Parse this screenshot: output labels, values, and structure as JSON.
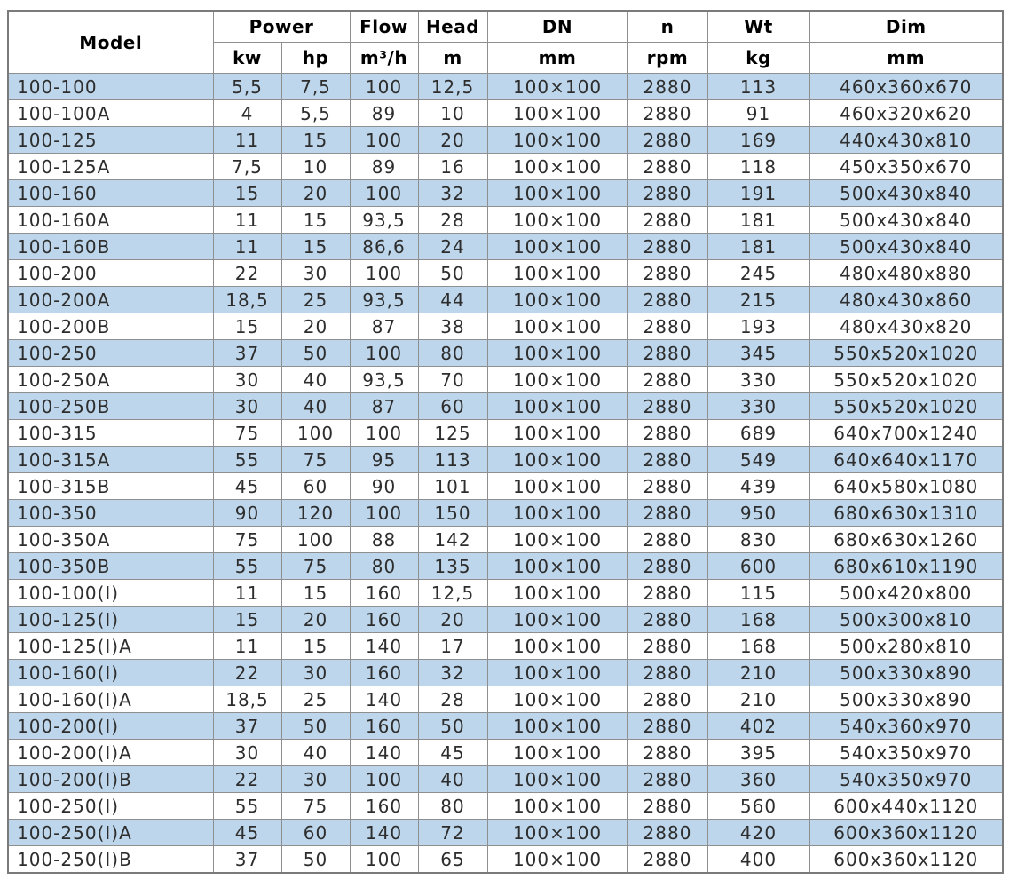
{
  "colors": {
    "stripe_blue": "#bdd6eb",
    "row_white": "#ffffff",
    "grid_border": "#8f8f8f",
    "outer_border": "#7b7b7b",
    "header_text": "#000000",
    "body_text": "#2d2d2d"
  },
  "chart_data": {
    "type": "table",
    "layout": {
      "striped": true,
      "first_row_color": "blue",
      "numeric_alignment": "center",
      "model_alignment": "left"
    },
    "header": {
      "groups": [
        {
          "label": "Model"
        },
        {
          "label": "Power"
        },
        {
          "label": "Flow"
        },
        {
          "label": "Head"
        },
        {
          "label": "DN"
        },
        {
          "label": "n"
        },
        {
          "label": "Wt"
        },
        {
          "label": "Dim"
        }
      ],
      "units": [
        "kw",
        "hp",
        "m³/h",
        "m",
        "mm",
        "rpm",
        "kg",
        "mm"
      ]
    },
    "rows": [
      [
        "100-100",
        "5,5",
        "7,5",
        "100",
        "12,5",
        "100×100",
        "2880",
        "113",
        "460x360x670"
      ],
      [
        "100-100A",
        "4",
        "5,5",
        "89",
        "10",
        "100×100",
        "2880",
        "91",
        "460x320x620"
      ],
      [
        "100-125",
        "11",
        "15",
        "100",
        "20",
        "100×100",
        "2880",
        "169",
        "440x430x810"
      ],
      [
        "100-125A",
        "7,5",
        "10",
        "89",
        "16",
        "100×100",
        "2880",
        "118",
        "450x350x670"
      ],
      [
        "100-160",
        "15",
        "20",
        "100",
        "32",
        "100×100",
        "2880",
        "191",
        "500x430x840"
      ],
      [
        "100-160A",
        "11",
        "15",
        "93,5",
        "28",
        "100×100",
        "2880",
        "181",
        "500x430x840"
      ],
      [
        "100-160B",
        "11",
        "15",
        "86,6",
        "24",
        "100×100",
        "2880",
        "181",
        "500x430x840"
      ],
      [
        "100-200",
        "22",
        "30",
        "100",
        "50",
        "100×100",
        "2880",
        "245",
        "480x480x880"
      ],
      [
        "100-200A",
        "18,5",
        "25",
        "93,5",
        "44",
        "100×100",
        "2880",
        "215",
        "480x430x860"
      ],
      [
        "100-200B",
        "15",
        "20",
        "87",
        "38",
        "100×100",
        "2880",
        "193",
        "480x430x820"
      ],
      [
        "100-250",
        "37",
        "50",
        "100",
        "80",
        "100×100",
        "2880",
        "345",
        "550x520x1020"
      ],
      [
        "100-250A",
        "30",
        "40",
        "93,5",
        "70",
        "100×100",
        "2880",
        "330",
        "550x520x1020"
      ],
      [
        "100-250B",
        "30",
        "40",
        "87",
        "60",
        "100×100",
        "2880",
        "330",
        "550x520x1020"
      ],
      [
        "100-315",
        "75",
        "100",
        "100",
        "125",
        "100×100",
        "2880",
        "689",
        "640x700x1240"
      ],
      [
        "100-315A",
        "55",
        "75",
        "95",
        "113",
        "100×100",
        "2880",
        "549",
        "640x640x1170"
      ],
      [
        "100-315B",
        "45",
        "60",
        "90",
        "101",
        "100×100",
        "2880",
        "439",
        "640x580x1080"
      ],
      [
        "100-350",
        "90",
        "120",
        "100",
        "150",
        "100×100",
        "2880",
        "950",
        "680x630x1310"
      ],
      [
        "100-350A",
        "75",
        "100",
        "88",
        "142",
        "100×100",
        "2880",
        "830",
        "680x630x1260"
      ],
      [
        "100-350B",
        "55",
        "75",
        "80",
        "135",
        "100×100",
        "2880",
        "600",
        "680x610x1190"
      ],
      [
        "100-100(I)",
        "11",
        "15",
        "160",
        "12,5",
        "100×100",
        "2880",
        "115",
        "500x420x800"
      ],
      [
        "100-125(I)",
        "15",
        "20",
        "160",
        "20",
        "100×100",
        "2880",
        "168",
        "500x300x810"
      ],
      [
        "100-125(I)A",
        "11",
        "15",
        "140",
        "17",
        "100×100",
        "2880",
        "168",
        "500x280x810"
      ],
      [
        "100-160(I)",
        "22",
        "30",
        "160",
        "32",
        "100×100",
        "2880",
        "210",
        "500x330x890"
      ],
      [
        "100-160(I)A",
        "18,5",
        "25",
        "140",
        "28",
        "100×100",
        "2880",
        "210",
        "500x330x890"
      ],
      [
        "100-200(I)",
        "37",
        "50",
        "160",
        "50",
        "100×100",
        "2880",
        "402",
        "540x360x970"
      ],
      [
        "100-200(I)A",
        "30",
        "40",
        "140",
        "45",
        "100×100",
        "2880",
        "395",
        "540x350x970"
      ],
      [
        "100-200(I)B",
        "22",
        "30",
        "100",
        "40",
        "100×100",
        "2880",
        "360",
        "540x350x970"
      ],
      [
        "100-250(I)",
        "55",
        "75",
        "160",
        "80",
        "100×100",
        "2880",
        "560",
        "600x440x1120"
      ],
      [
        "100-250(I)A",
        "45",
        "60",
        "140",
        "72",
        "100×100",
        "2880",
        "420",
        "600x360x1120"
      ],
      [
        "100-250(I)B",
        "37",
        "50",
        "100",
        "65",
        "100×100",
        "2880",
        "400",
        "600x360x1120"
      ]
    ]
  }
}
